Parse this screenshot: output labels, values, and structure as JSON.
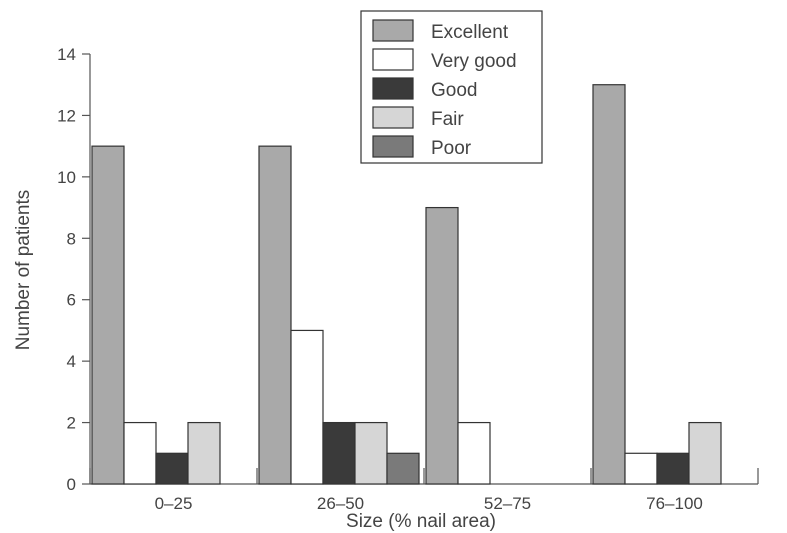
{
  "chart_data": {
    "type": "bar",
    "title": "",
    "xlabel": "Size (% nail area)",
    "ylabel": "Number of patients",
    "categories": [
      "0–25",
      "26–50",
      "52–75",
      "76–100"
    ],
    "series": [
      {
        "name": "Excellent",
        "color": "#a9a9a9",
        "values": [
          11,
          11,
          9,
          13
        ]
      },
      {
        "name": "Very good",
        "color": "#ffffff",
        "values": [
          2,
          5,
          2,
          1
        ]
      },
      {
        "name": "Good",
        "color": "#3a3a3a",
        "values": [
          1,
          2,
          0,
          1
        ]
      },
      {
        "name": "Fair",
        "color": "#d6d6d6",
        "values": [
          2,
          2,
          0,
          2
        ]
      },
      {
        "name": "Poor",
        "color": "#7a7a7a",
        "values": [
          0,
          1,
          0,
          0
        ]
      }
    ],
    "ylim": [
      0,
      14
    ],
    "yticks": [
      0,
      2,
      4,
      6,
      8,
      10,
      12,
      14
    ],
    "grid": false,
    "legend_position": "top-center"
  }
}
